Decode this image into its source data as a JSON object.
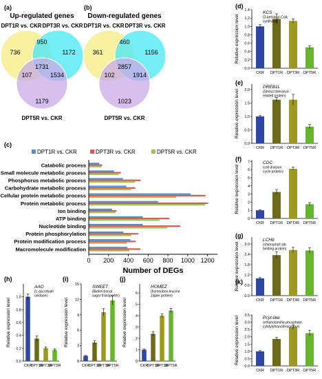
{
  "figure": {
    "panel_letters": [
      "(a)",
      "(b)",
      "(c)",
      "(d)",
      "(e)",
      "(f)",
      "(g)",
      "(h)",
      "(i)",
      "(j)",
      "(k)"
    ]
  },
  "colors": {
    "venn_yellow": "#F7EE8E",
    "venn_cyan": "#52E8F2",
    "venn_purple": "#C9A9E8",
    "bar_blue": "#4D8FD6",
    "bar_red": "#D65C4E",
    "bar_green": "#9CC25A",
    "CKR": "#2F45A8",
    "DPT1R": "#6E6A1C",
    "DPT3R": "#9D9A1E",
    "DPT5R": "#67B52C"
  },
  "chart_data": [
    {
      "panel": "(a)",
      "type": "venn",
      "title": "Up-regulated genes",
      "sets": [
        "DPT1R vs. CKR",
        "DPT3R vs. CKR",
        "DPT5R vs. CKR"
      ],
      "regions": {
        "only1": "736",
        "only3": "1172",
        "only5": "1179",
        "r13": "950",
        "r15": "107",
        "r35": "1534",
        "all": "1731"
      }
    },
    {
      "panel": "(b)",
      "type": "venn",
      "title": "Down-regulated genes",
      "sets": [
        "DPT1R vs. CKR",
        "DPT3R vs. CKR",
        "DPT5R vs. CKR"
      ],
      "regions": {
        "only1": "361",
        "only3": "1156",
        "only5": "1023",
        "r13": "460",
        "r15": "102",
        "r35": "1914",
        "all": "2857"
      }
    },
    {
      "panel": "(c)",
      "type": "bar",
      "orientation": "horizontal",
      "xlabel": "Number of DEGs",
      "xlim": [
        0,
        1300
      ],
      "xticks": [
        "0",
        "200",
        "400",
        "600",
        "800",
        "1000",
        "1200"
      ],
      "categories": [
        "Catabolic process",
        "Small molecule metabolic process",
        "Phosphorus metabolic process",
        "Carbohydrate metabolic process",
        "Cellular protein metabolic process",
        "Protein metabolic process",
        "Ion binding",
        "ATP binding",
        "Nucleotide binding",
        "Protein phosphorylation",
        "Protein modification process",
        "Macromolecule modification"
      ],
      "series": [
        {
          "name": "DPT1R vs. CKR",
          "values": [
            105,
            255,
            345,
            380,
            1030,
            700,
            235,
            545,
            545,
            350,
            420,
            390
          ]
        },
        {
          "name": "DPT3R vs. CKR",
          "values": [
            135,
            325,
            525,
            470,
            1180,
            1205,
            280,
            815,
            925,
            500,
            475,
            520
          ]
        },
        {
          "name": "DPT5R vs. CKR",
          "values": [
            130,
            305,
            470,
            425,
            885,
            1175,
            270,
            715,
            795,
            430,
            385,
            410
          ]
        }
      ]
    },
    {
      "panel": "(d)",
      "type": "bar",
      "gene": "KCS",
      "protein": [
        "(3-ketoacyl-CoA",
        "synthase)"
      ],
      "ylabel": "Relative expression level",
      "ylim": [
        0,
        1.4
      ],
      "yticks": [
        "0.0",
        "0.2",
        "0.4",
        "0.6",
        "0.8",
        "1.0",
        "1.2",
        "1.4"
      ],
      "categories": [
        "CKR",
        "DPT1R",
        "DPT3R",
        "DPT5R"
      ],
      "values": [
        1.0,
        1.18,
        1.13,
        0.5
      ],
      "errors": [
        0.04,
        0.12,
        0.05,
        0.04
      ]
    },
    {
      "panel": "(e)",
      "type": "bar",
      "gene": "DREB1L",
      "protein": [
        "(Stress tolerance",
        "related protein)"
      ],
      "ylabel": "Relative expression level",
      "ylim": [
        0,
        2.2
      ],
      "yticks": [
        "0.0",
        "0.5",
        "1.0",
        "1.5",
        "2.0"
      ],
      "categories": [
        "CKR",
        "DPT1R",
        "DPT3R",
        "DPT5R"
      ],
      "values": [
        1.0,
        1.62,
        1.62,
        0.62
      ],
      "errors": [
        0.03,
        0.08,
        0.2,
        0.08
      ]
    },
    {
      "panel": "(f)",
      "type": "bar",
      "gene": "CDC",
      "protein": [
        "(cell division",
        "cycle protein)"
      ],
      "ylabel": "Relative expression level",
      "ylim": [
        0,
        7.2
      ],
      "yticks": [
        "0",
        "1",
        "2",
        "3",
        "4",
        "5",
        "6",
        "7"
      ],
      "categories": [
        "CKR",
        "DPT1R",
        "DPT3R",
        "DPT5R"
      ],
      "values": [
        1.0,
        3.25,
        6.1,
        1.75
      ],
      "errors": [
        0.05,
        0.3,
        0.2,
        0.2
      ]
    },
    {
      "panel": "(g)",
      "type": "bar",
      "gene": "LCHb",
      "protein": [
        "(chlorophyll a/b",
        "binding protein)"
      ],
      "ylabel": "Relative expression level",
      "ylim": [
        0,
        3.4
      ],
      "yticks": [
        "0.0",
        "0.6",
        "1.2",
        "1.8",
        "2.4",
        "3.0"
      ],
      "categories": [
        "CKR",
        "DPT1R",
        "DPT3R",
        "DPT5R"
      ],
      "values": [
        1.0,
        2.35,
        2.65,
        2.62
      ],
      "errors": [
        0.05,
        0.2,
        0.15,
        0.15
      ]
    },
    {
      "panel": "(h)",
      "type": "bar",
      "gene": "AAO",
      "protein": [
        "(L-ascorbate",
        "oxidase)"
      ],
      "ylabel": "Relative expression level",
      "ylim": [
        0,
        1.2
      ],
      "yticks": [
        "0.0",
        "0.2",
        "0.4",
        "0.6",
        "0.8",
        "1.0"
      ],
      "categories": [
        "CKR",
        "DPT1R",
        "DPT3R",
        "DPT5R"
      ],
      "values": [
        1.0,
        0.35,
        0.2,
        0.17
      ],
      "errors": [
        0.04,
        0.04,
        0.02,
        0.02
      ]
    },
    {
      "panel": "(i)",
      "type": "bar",
      "gene": "SWEET",
      "protein": [
        "(Bidirectional",
        "sugar transporter)"
      ],
      "ylabel": "Relative expression level",
      "ylim": [
        0,
        15
      ],
      "yticks": [
        "0",
        "3",
        "6",
        "9",
        "12",
        "15"
      ],
      "categories": [
        "CKR",
        "DPT1R",
        "DPT3R",
        "DPT5R"
      ],
      "values": [
        1.0,
        3.6,
        9.5,
        11.8
      ],
      "errors": [
        0.1,
        0.35,
        0.7,
        0.9
      ]
    },
    {
      "panel": "(j)",
      "type": "bar",
      "gene": "HOMEZ",
      "protein": [
        "(homeobox-leucine",
        "zipper protein)"
      ],
      "ylabel": "Relative expression level",
      "ylim": [
        0,
        6.8
      ],
      "yticks": [
        "0",
        "1",
        "2",
        "3",
        "4",
        "5",
        "6"
      ],
      "categories": [
        "CKR",
        "DPT1R",
        "DPT3R",
        "DPT5R"
      ],
      "values": [
        1.0,
        2.4,
        4.0,
        4.45
      ],
      "errors": [
        0.05,
        0.2,
        0.15,
        0.2
      ]
    },
    {
      "panel": "(k)",
      "type": "bar",
      "gene": "Pcyt-like",
      "protein": [
        "(ethanolamine-phosphate",
        "cytidylyltransferase-like)"
      ],
      "ylabel": "Relative expression level",
      "ylim": [
        0,
        3.5
      ],
      "yticks": [
        "0.0",
        "0.5",
        "1.0",
        "1.5",
        "2.0",
        "2.5",
        "3.0",
        "3.5"
      ],
      "categories": [
        "CKR",
        "DPT1R",
        "DPT3R",
        "DPT5R"
      ],
      "values": [
        1.0,
        1.85,
        2.65,
        2.25
      ],
      "errors": [
        0.05,
        0.1,
        0.15,
        0.2
      ]
    }
  ]
}
